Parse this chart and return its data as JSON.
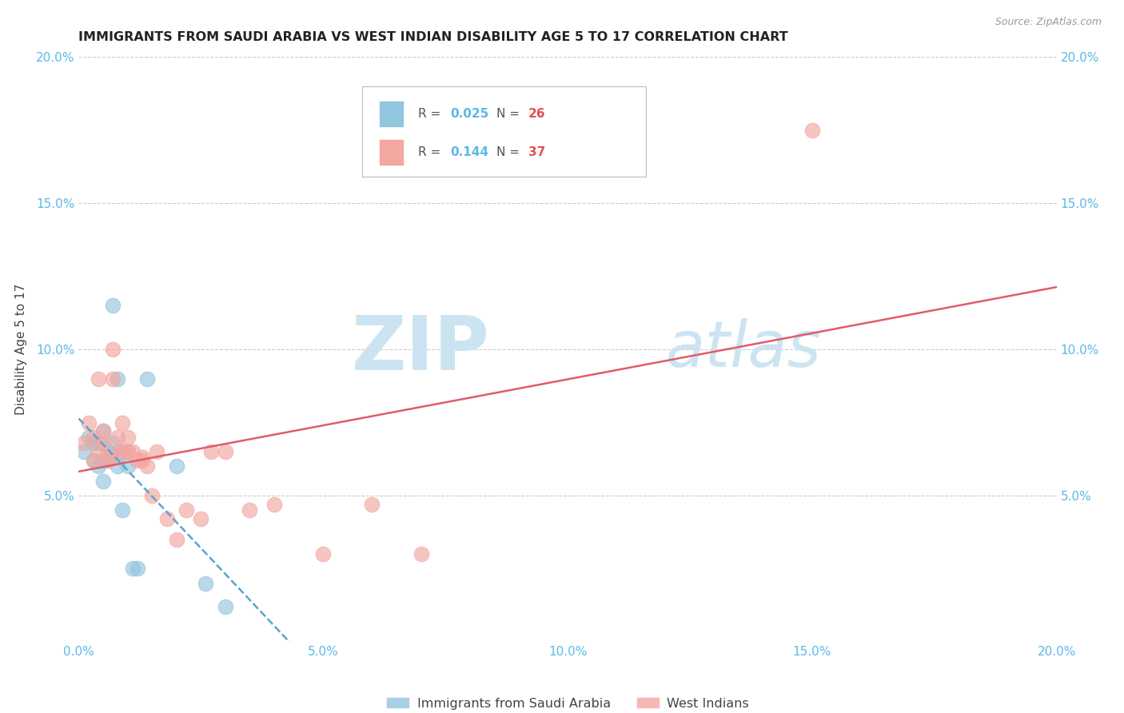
{
  "title": "IMMIGRANTS FROM SAUDI ARABIA VS WEST INDIAN DISABILITY AGE 5 TO 17 CORRELATION CHART",
  "source": "Source: ZipAtlas.com",
  "ylabel": "Disability Age 5 to 17",
  "xlim": [
    0.0,
    0.2
  ],
  "ylim": [
    0.0,
    0.2
  ],
  "xticks": [
    0.0,
    0.05,
    0.1,
    0.15,
    0.2
  ],
  "yticks": [
    0.05,
    0.1,
    0.15,
    0.2
  ],
  "xticklabels": [
    "0.0%",
    "5.0%",
    "10.0%",
    "15.0%",
    "20.0%"
  ],
  "yticklabels": [
    "5.0%",
    "10.0%",
    "15.0%",
    "20.0%"
  ],
  "right_yticklabels": [
    "5.0%",
    "10.0%",
    "15.0%",
    "20.0%"
  ],
  "right_yticks": [
    0.05,
    0.1,
    0.15,
    0.2
  ],
  "legend_labels": [
    "Immigrants from Saudi Arabia",
    "West Indians"
  ],
  "saudi_R": "0.025",
  "saudi_N": "26",
  "west_R": "0.144",
  "west_N": "37",
  "saudi_color": "#92c5de",
  "west_color": "#f4a6a0",
  "saudi_line_color": "#5ba3d0",
  "west_line_color": "#e05c6a",
  "background_color": "#ffffff",
  "watermark_zip": "ZIP",
  "watermark_atlas": "atlas",
  "watermark_color": "#cce4f2",
  "tick_color": "#5cb8e8",
  "saudi_x": [
    0.001,
    0.002,
    0.003,
    0.003,
    0.004,
    0.004,
    0.005,
    0.005,
    0.005,
    0.006,
    0.006,
    0.007,
    0.007,
    0.008,
    0.008,
    0.008,
    0.009,
    0.009,
    0.01,
    0.01,
    0.011,
    0.012,
    0.014,
    0.02,
    0.026,
    0.03
  ],
  "saudi_y": [
    0.065,
    0.07,
    0.068,
    0.062,
    0.068,
    0.06,
    0.062,
    0.055,
    0.072,
    0.065,
    0.062,
    0.115,
    0.068,
    0.09,
    0.063,
    0.06,
    0.045,
    0.065,
    0.065,
    0.06,
    0.025,
    0.025,
    0.09,
    0.06,
    0.02,
    0.012
  ],
  "west_x": [
    0.001,
    0.002,
    0.003,
    0.003,
    0.004,
    0.004,
    0.005,
    0.005,
    0.006,
    0.006,
    0.007,
    0.007,
    0.008,
    0.008,
    0.009,
    0.009,
    0.01,
    0.01,
    0.011,
    0.012,
    0.013,
    0.013,
    0.014,
    0.015,
    0.016,
    0.018,
    0.02,
    0.022,
    0.025,
    0.027,
    0.03,
    0.035,
    0.04,
    0.05,
    0.06,
    0.07,
    0.15
  ],
  "west_y": [
    0.068,
    0.075,
    0.07,
    0.062,
    0.065,
    0.09,
    0.072,
    0.068,
    0.063,
    0.062,
    0.1,
    0.09,
    0.07,
    0.065,
    0.065,
    0.075,
    0.07,
    0.065,
    0.065,
    0.062,
    0.063,
    0.062,
    0.06,
    0.05,
    0.065,
    0.042,
    0.035,
    0.045,
    0.042,
    0.065,
    0.065,
    0.045,
    0.047,
    0.03,
    0.047,
    0.03,
    0.175
  ]
}
